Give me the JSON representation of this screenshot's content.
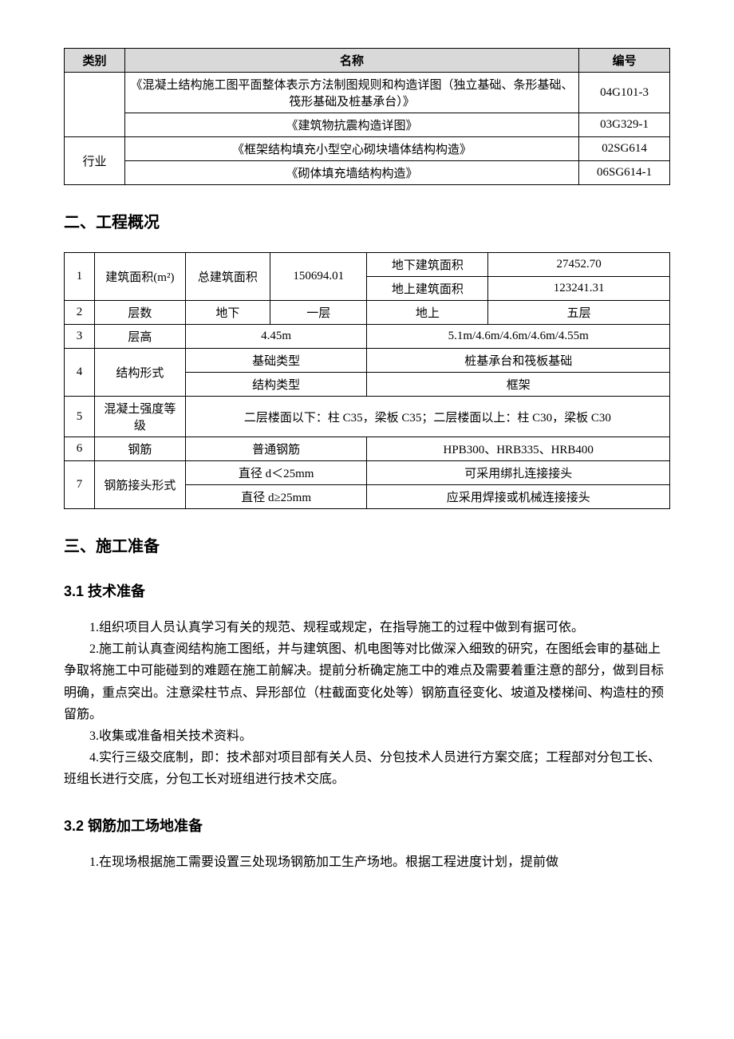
{
  "table1": {
    "headers": [
      "类别",
      "名称",
      "编号"
    ],
    "rows": [
      {
        "category": "",
        "name": "《混凝土结构施工图平面整体表示方法制图规则和构造详图（独立基础、条形基础、筏形基础及桩基承台）》",
        "code": "04G101-3"
      },
      {
        "category": "",
        "name": "《建筑物抗震构造详图》",
        "code": "03G329-1"
      },
      {
        "category": "行业",
        "name": "《框架结构填充小型空心砌块墙体结构构造》",
        "code": "02SG614"
      },
      {
        "category": "",
        "name": "《砌体填充墙结构构造》",
        "code": "06SG614-1"
      }
    ]
  },
  "section2_title": "二、工程概况",
  "table2": {
    "r1": {
      "num": "1",
      "label": "建筑面积(m²)",
      "c3": "总建筑面积",
      "c4": "150694.01",
      "c5a": "地下建筑面积",
      "c6a": "27452.70",
      "c5b": "地上建筑面积",
      "c6b": "123241.31"
    },
    "r2": {
      "num": "2",
      "label": "层数",
      "c3": "地下",
      "c4": "一层",
      "c5": "地上",
      "c6": "五层"
    },
    "r3": {
      "num": "3",
      "label": "层高",
      "c34": "4.45m",
      "c56": "5.1m/4.6m/4.6m/4.6m/4.55m"
    },
    "r4": {
      "num": "4",
      "label": "结构形式",
      "c34a": "基础类型",
      "c56a": "桩基承台和筏板基础",
      "c34b": "结构类型",
      "c56b": "框架"
    },
    "r5": {
      "num": "5",
      "label": "混凝土强度等级",
      "text": "二层楼面以下：柱 C35，梁板 C35；二层楼面以上：柱 C30，梁板 C30"
    },
    "r6": {
      "num": "6",
      "label": "钢筋",
      "c34": "普通钢筋",
      "c56": "HPB300、HRB335、HRB400"
    },
    "r7": {
      "num": "7",
      "label": "钢筋接头形式",
      "c34a": "直径 d＜25mm",
      "c56a": "可采用绑扎连接接头",
      "c34b": "直径 d≥25mm",
      "c56b": "应采用焊接或机械连接接头"
    }
  },
  "section3_title": "三、施工准备",
  "section31_title": "3.1 技术准备",
  "p1": "1.组织项目人员认真学习有关的规范、规程或规定，在指导施工的过程中做到有据可依。",
  "p2": "2.施工前认真查阅结构施工图纸，并与建筑图、机电图等对比做深入细致的研究，在图纸会审的基础上争取将施工中可能碰到的难题在施工前解决。提前分析确定施工中的难点及需要着重注意的部分，做到目标明确，重点突出。注意梁柱节点、异形部位（柱截面变化处等）钢筋直径变化、坡道及楼梯间、构造柱的预留筋。",
  "p3": "3.收集或准备相关技术资料。",
  "p4": "4.实行三级交底制，即：技术部对项目部有关人员、分包技术人员进行方案交底；工程部对分包工长、班组长进行交底，分包工长对班组进行技术交底。",
  "section32_title": "3.2 钢筋加工场地准备",
  "p5": "1.在现场根据施工需要设置三处现场钢筋加工生产场地。根据工程进度计划，提前做"
}
